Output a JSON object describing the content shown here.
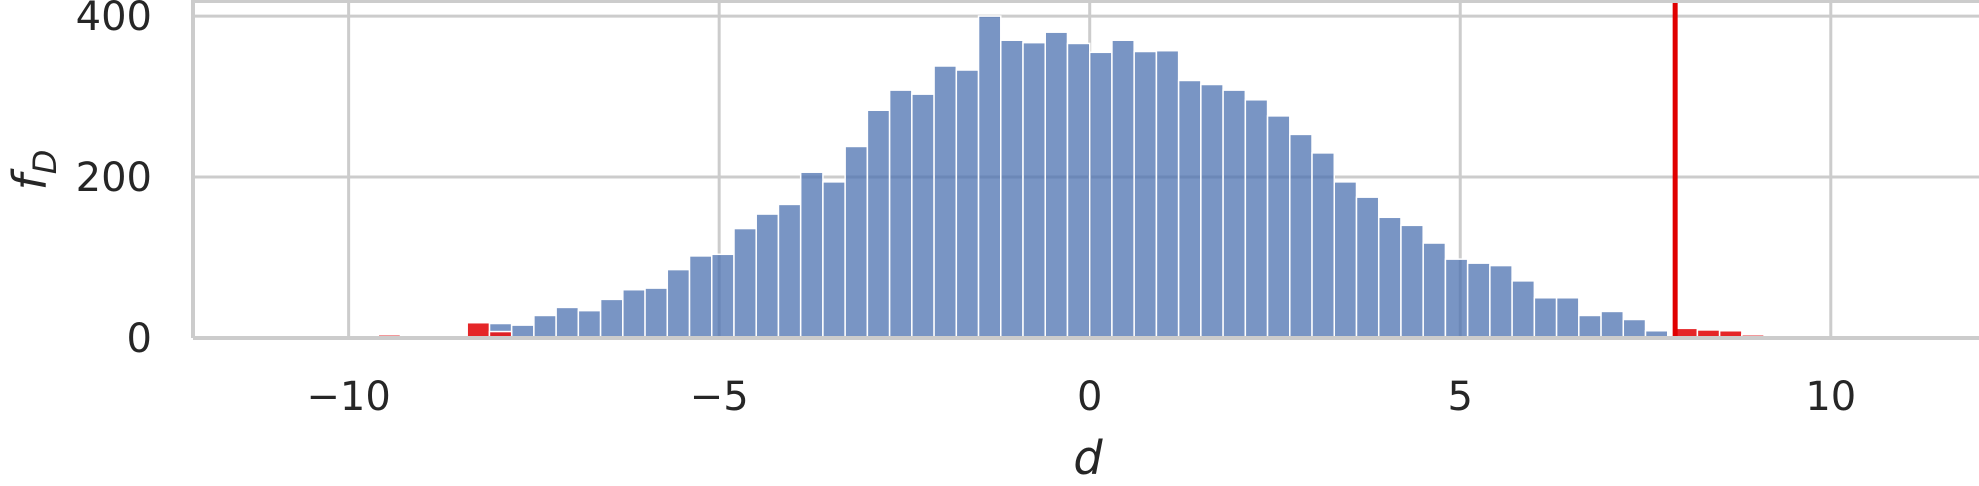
{
  "chart_data": {
    "type": "bar",
    "style": "histogram",
    "xlabel": "d",
    "ylabel_main": "f",
    "ylabel_sub": "D",
    "xlim": [
      -12.1,
      12.0
    ],
    "ylim": [
      0,
      420
    ],
    "x_ticks": [
      -10,
      -5,
      0,
      5,
      10
    ],
    "x_tick_labels": [
      "−10",
      "−5",
      "0",
      "5",
      "10"
    ],
    "y_ticks": [
      0,
      200,
      400
    ],
    "y_tick_labels": [
      "0",
      "200",
      "400"
    ],
    "grid": true,
    "bin_width": 0.3,
    "threshold": 7.9,
    "colors": {
      "main": "#4c72b0",
      "tail": "#e41a1c",
      "threshold_line": "#e00000",
      "grid": "#cccccc",
      "background": "#ffffff",
      "text": "#262626"
    },
    "main_bins": [
      {
        "x0": -8.1,
        "value": 18
      },
      {
        "x0": -7.8,
        "value": 16
      },
      {
        "x0": -7.5,
        "value": 28
      },
      {
        "x0": -7.2,
        "value": 38
      },
      {
        "x0": -6.9,
        "value": 34
      },
      {
        "x0": -6.6,
        "value": 48
      },
      {
        "x0": -6.3,
        "value": 60
      },
      {
        "x0": -6.0,
        "value": 62
      },
      {
        "x0": -5.7,
        "value": 85
      },
      {
        "x0": -5.4,
        "value": 102
      },
      {
        "x0": -5.1,
        "value": 104
      },
      {
        "x0": -4.8,
        "value": 136
      },
      {
        "x0": -4.5,
        "value": 154
      },
      {
        "x0": -4.2,
        "value": 166
      },
      {
        "x0": -3.9,
        "value": 206
      },
      {
        "x0": -3.6,
        "value": 194
      },
      {
        "x0": -3.3,
        "value": 238
      },
      {
        "x0": -3.0,
        "value": 283
      },
      {
        "x0": -2.7,
        "value": 308
      },
      {
        "x0": -2.4,
        "value": 303
      },
      {
        "x0": -2.1,
        "value": 338
      },
      {
        "x0": -1.8,
        "value": 333
      },
      {
        "x0": -1.5,
        "value": 400
      },
      {
        "x0": -1.2,
        "value": 370
      },
      {
        "x0": -0.9,
        "value": 367
      },
      {
        "x0": -0.6,
        "value": 380
      },
      {
        "x0": -0.3,
        "value": 366
      },
      {
        "x0": 0.0,
        "value": 355
      },
      {
        "x0": 0.3,
        "value": 370
      },
      {
        "x0": 0.6,
        "value": 356
      },
      {
        "x0": 0.9,
        "value": 357
      },
      {
        "x0": 1.2,
        "value": 320
      },
      {
        "x0": 1.5,
        "value": 315
      },
      {
        "x0": 1.8,
        "value": 308
      },
      {
        "x0": 2.1,
        "value": 296
      },
      {
        "x0": 2.4,
        "value": 276
      },
      {
        "x0": 2.7,
        "value": 253
      },
      {
        "x0": 3.0,
        "value": 230
      },
      {
        "x0": 3.3,
        "value": 194
      },
      {
        "x0": 3.6,
        "value": 175
      },
      {
        "x0": 3.9,
        "value": 150
      },
      {
        "x0": 4.2,
        "value": 140
      },
      {
        "x0": 4.5,
        "value": 118
      },
      {
        "x0": 4.8,
        "value": 98
      },
      {
        "x0": 5.1,
        "value": 93
      },
      {
        "x0": 5.4,
        "value": 90
      },
      {
        "x0": 5.7,
        "value": 71
      },
      {
        "x0": 6.0,
        "value": 50
      },
      {
        "x0": 6.3,
        "value": 50
      },
      {
        "x0": 6.6,
        "value": 28
      },
      {
        "x0": 6.9,
        "value": 33
      },
      {
        "x0": 7.2,
        "value": 23
      },
      {
        "x0": 7.5,
        "value": 9
      }
    ],
    "tail_bins": [
      {
        "x0": -9.6,
        "value": 4
      },
      {
        "x0": -8.4,
        "value": 19
      },
      {
        "x0": -8.1,
        "value": 8
      },
      {
        "x0": 7.9,
        "value": 12
      },
      {
        "x0": 8.2,
        "value": 10
      },
      {
        "x0": 8.5,
        "value": 9
      },
      {
        "x0": 8.8,
        "value": 4
      }
    ]
  }
}
